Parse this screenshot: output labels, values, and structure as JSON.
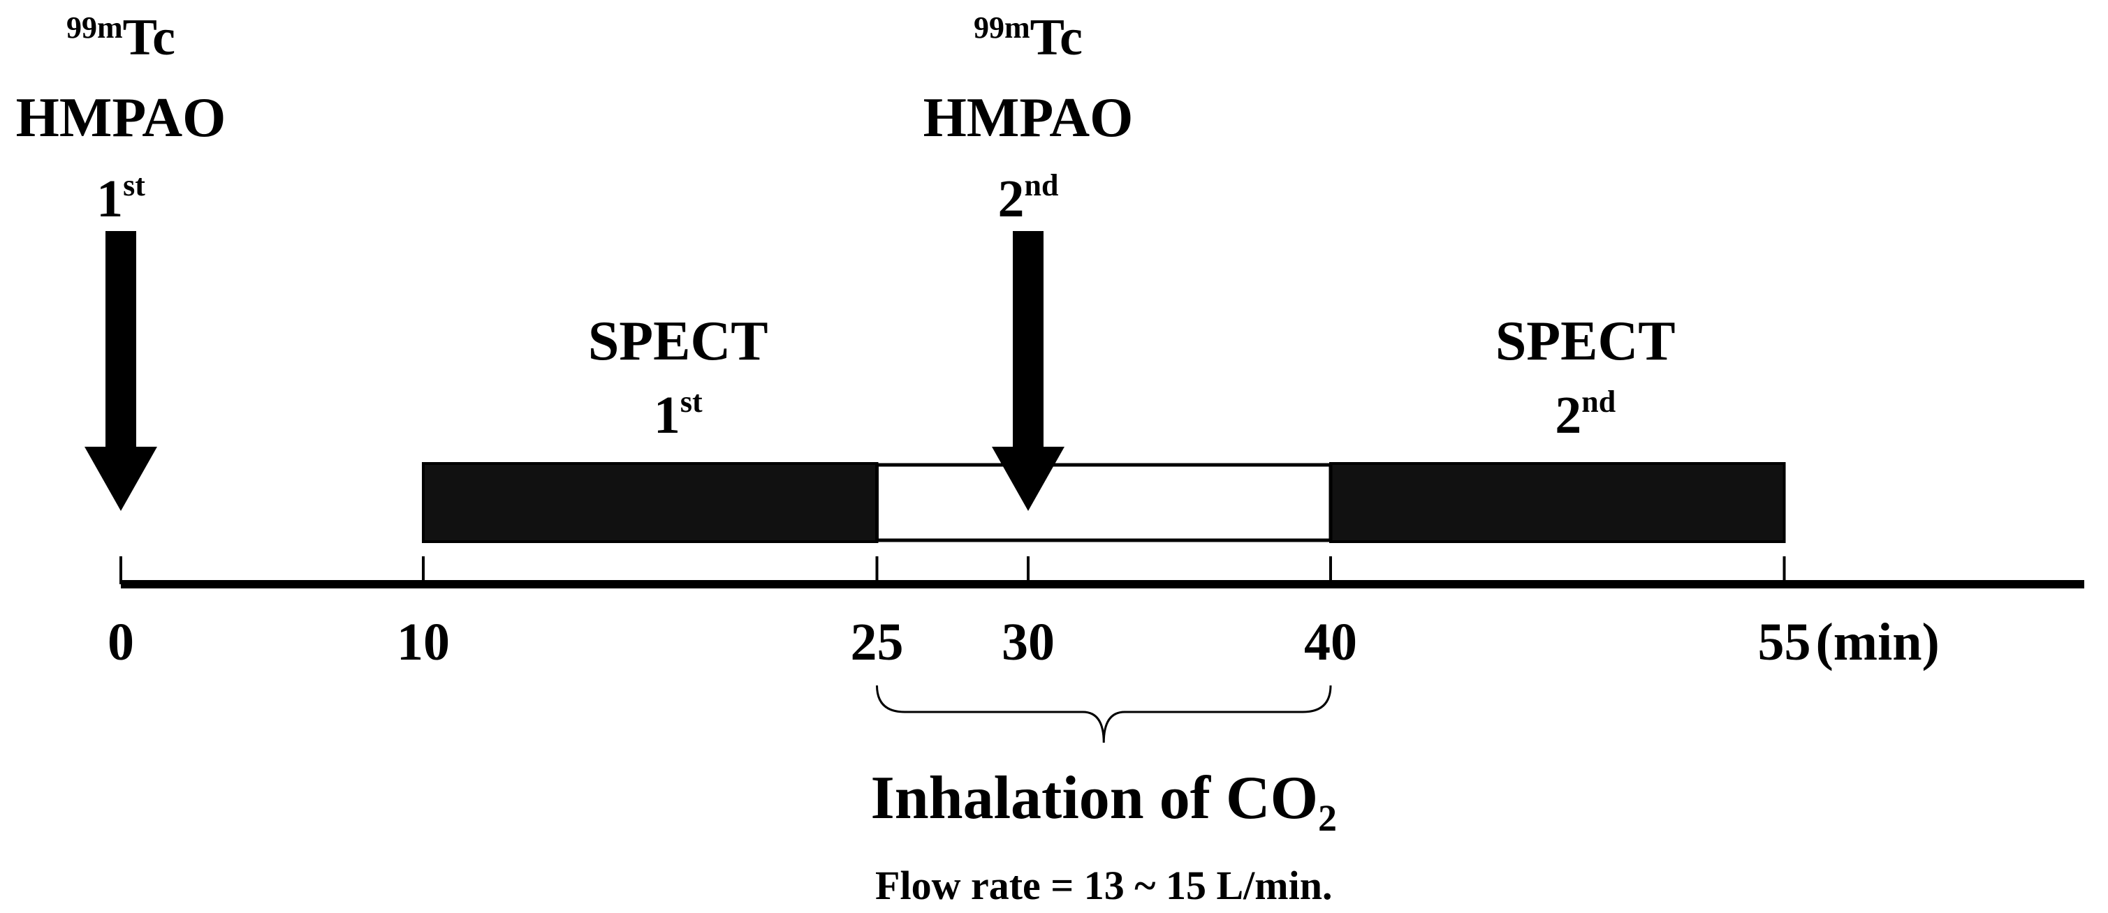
{
  "injections": [
    {
      "isotope": "99m",
      "tracer": "Tc",
      "agent": "HMPAO",
      "ordinal": "1",
      "suffix": "st",
      "time": 0
    },
    {
      "isotope": "99m",
      "tracer": "Tc",
      "agent": "HMPAO",
      "ordinal": "2",
      "suffix": "nd",
      "time": 30
    }
  ],
  "scans": [
    {
      "label": "SPECT",
      "ordinal": "1",
      "suffix": "st",
      "start": 10,
      "end": 25
    },
    {
      "label": "SPECT",
      "ordinal": "2",
      "suffix": "nd",
      "start": 40,
      "end": 55
    }
  ],
  "inhalation": {
    "label": "Inhalation of CO",
    "subscript": "2",
    "detail": "Flow rate = 13 ~ 15 L/min.",
    "start": 25,
    "end": 40
  },
  "axis": {
    "ticks": [
      0,
      10,
      25,
      30,
      40,
      55
    ],
    "unit": "(min)"
  }
}
